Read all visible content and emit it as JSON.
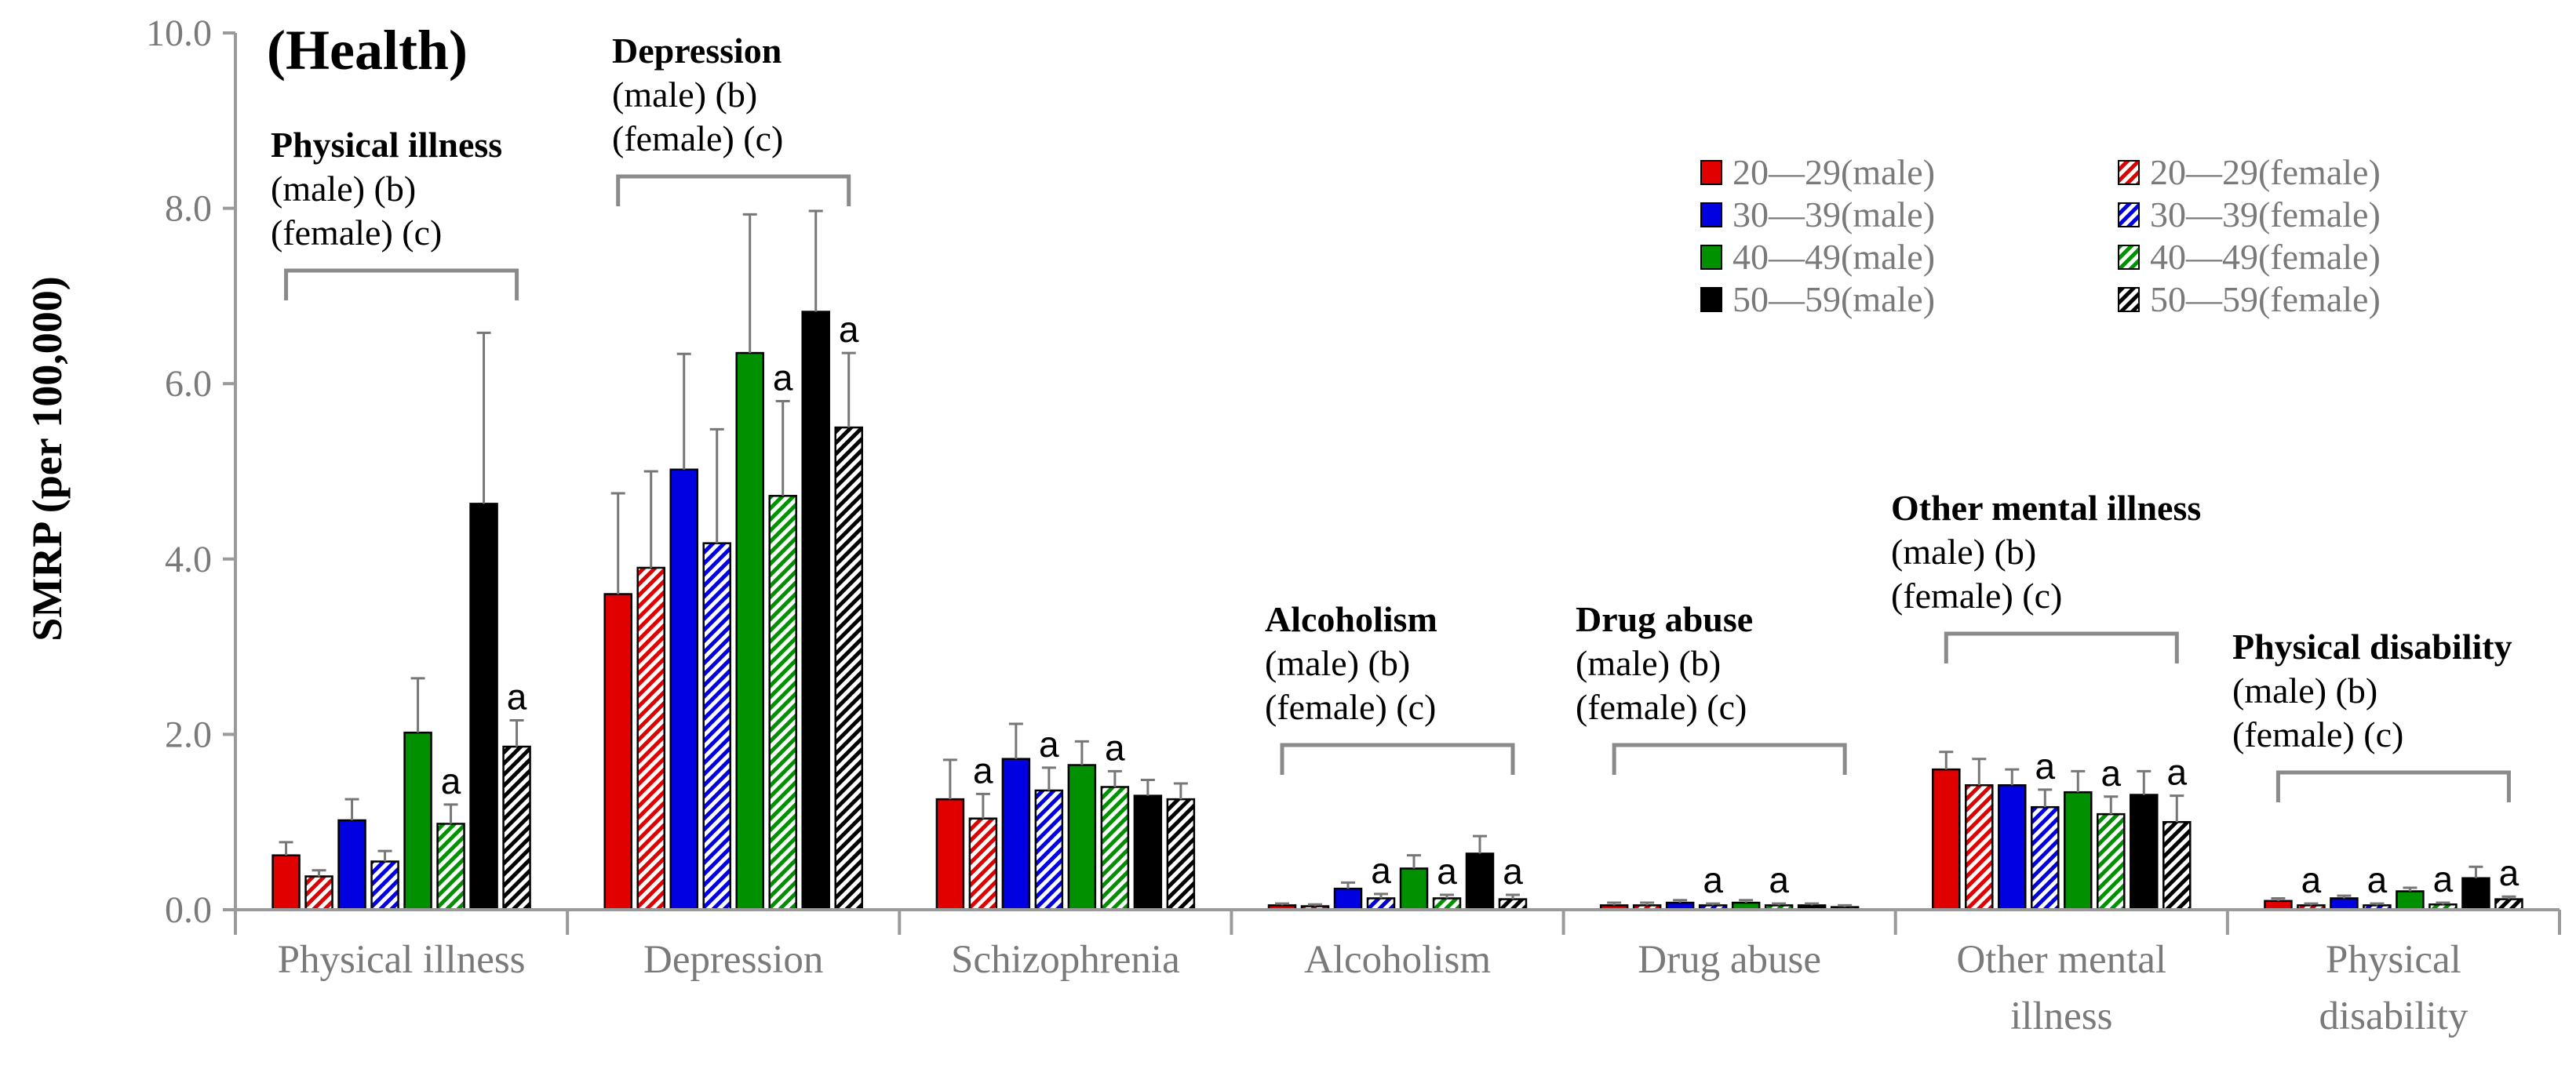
{
  "chart_data": {
    "type": "bar",
    "title": "(Health)",
    "ylabel": "SMRP (per 100,000)",
    "xlabel": "",
    "ylim": [
      0,
      10
    ],
    "yticks": [
      "0.0",
      "2.0",
      "4.0",
      "6.0",
      "8.0",
      "10.0"
    ],
    "ytick_values": [
      0,
      2,
      4,
      6,
      8,
      10
    ],
    "categories": [
      [
        "Physical illness"
      ],
      [
        "Depression"
      ],
      [
        "Schizophrenia"
      ],
      [
        "Alcoholism"
      ],
      [
        "Drug abuse"
      ],
      [
        "Other mental",
        "illness"
      ],
      [
        "Physical",
        "disability"
      ]
    ],
    "series": [
      {
        "name": "20—29(male)",
        "color": "#e00000",
        "pattern": "solid",
        "values": [
          0.62,
          3.6,
          1.26,
          0.05,
          0.05,
          1.6,
          0.1
        ],
        "errors": [
          0.15,
          1.15,
          0.45,
          0.02,
          0.03,
          0.2,
          0.03
        ],
        "marks": [
          "",
          "",
          "",
          "",
          "",
          "",
          ""
        ]
      },
      {
        "name": "20—29(female)",
        "color": "#e00000",
        "pattern": "hatch",
        "values": [
          0.38,
          3.9,
          1.04,
          0.04,
          0.05,
          1.42,
          0.05
        ],
        "errors": [
          0.07,
          1.1,
          0.28,
          0.02,
          0.03,
          0.3,
          0.02
        ],
        "marks": [
          "",
          "",
          "a",
          "",
          "",
          "",
          "a"
        ]
      },
      {
        "name": "30—39(male)",
        "color": "#0000e0",
        "pattern": "solid",
        "values": [
          1.02,
          5.02,
          1.72,
          0.24,
          0.08,
          1.42,
          0.13
        ],
        "errors": [
          0.24,
          1.32,
          0.4,
          0.07,
          0.03,
          0.18,
          0.03
        ],
        "marks": [
          "",
          "",
          "",
          "",
          "",
          "",
          ""
        ]
      },
      {
        "name": "30—39(female)",
        "color": "#0000e0",
        "pattern": "hatch",
        "values": [
          0.55,
          4.18,
          1.36,
          0.13,
          0.05,
          1.17,
          0.05
        ],
        "errors": [
          0.12,
          1.3,
          0.26,
          0.05,
          0.02,
          0.2,
          0.02
        ],
        "marks": [
          "",
          "",
          "a",
          "a",
          "a",
          "a",
          "a"
        ]
      },
      {
        "name": "40—49(male)",
        "color": "#009000",
        "pattern": "solid",
        "values": [
          2.02,
          6.35,
          1.65,
          0.47,
          0.08,
          1.34,
          0.21
        ],
        "errors": [
          0.62,
          1.58,
          0.27,
          0.15,
          0.03,
          0.24,
          0.04
        ],
        "marks": [
          "",
          "",
          "",
          "",
          "",
          "",
          ""
        ]
      },
      {
        "name": "40—49(female)",
        "color": "#009000",
        "pattern": "hatch",
        "values": [
          0.98,
          4.72,
          1.4,
          0.13,
          0.05,
          1.09,
          0.06
        ],
        "errors": [
          0.22,
          1.08,
          0.18,
          0.04,
          0.02,
          0.2,
          0.02
        ],
        "marks": [
          "a",
          "a",
          "a",
          "a",
          "a",
          "a",
          "a"
        ]
      },
      {
        "name": "50—59(male)",
        "color": "#000000",
        "pattern": "solid",
        "values": [
          4.63,
          6.82,
          1.3,
          0.64,
          0.05,
          1.31,
          0.36
        ],
        "errors": [
          1.95,
          1.15,
          0.18,
          0.2,
          0.02,
          0.27,
          0.13
        ],
        "marks": [
          "",
          "",
          "",
          "",
          "",
          "",
          ""
        ]
      },
      {
        "name": "50—59(female)",
        "color": "#000000",
        "pattern": "hatch",
        "values": [
          1.86,
          5.5,
          1.26,
          0.12,
          0.03,
          1.0,
          0.12
        ],
        "errors": [
          0.3,
          0.85,
          0.18,
          0.05,
          0.02,
          0.3,
          0.03
        ],
        "marks": [
          "a",
          "a",
          "",
          "a",
          "",
          "a",
          "a"
        ]
      }
    ],
    "annotations": [
      {
        "category": "Physical illness",
        "head": "Physical illness",
        "lines": [
          "(male) (b)",
          "(female) (c)"
        ]
      },
      {
        "category": "Depression",
        "head": "Depression",
        "lines": [
          "(male) (b)",
          "(female) (c)"
        ]
      },
      {
        "category": "Alcoholism",
        "head": "Alcoholism",
        "lines": [
          "(male) (b)",
          "(female) (c)"
        ]
      },
      {
        "category": "Drug abuse",
        "head": "Drug abuse",
        "lines": [
          "(male) (b)",
          "(female) (c)"
        ]
      },
      {
        "category": "Other mental illness",
        "head": "Other mental illness",
        "lines": [
          "(male) (b)",
          "(female) (c)"
        ]
      },
      {
        "category": "Physical disability",
        "head": "Physical disability",
        "lines": [
          "(male) (b)",
          "(female) (c)"
        ]
      }
    ],
    "legend_position": "top-right"
  }
}
